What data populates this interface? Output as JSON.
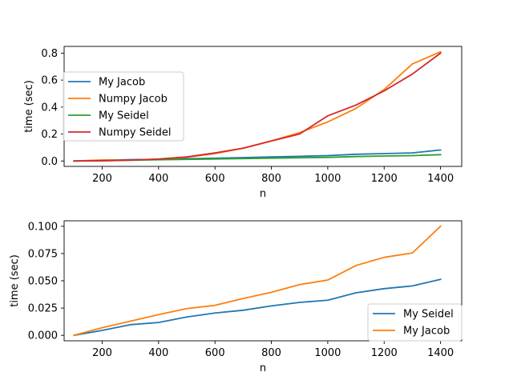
{
  "chart_data": [
    {
      "type": "line",
      "title": "",
      "xlabel": "n",
      "ylabel": "time (sec)",
      "xlim": [
        65,
        1475
      ],
      "ylim": [
        -0.04,
        0.85
      ],
      "xticks": [
        200,
        400,
        600,
        800,
        1000,
        1200,
        1400
      ],
      "yticks": [
        0.0,
        0.2,
        0.4,
        0.6,
        0.8
      ],
      "ytick_labels": [
        "0.0",
        "0.2",
        "0.4",
        "0.6",
        "0.8"
      ],
      "legend_position": "center-left",
      "grid": false,
      "x": [
        100,
        200,
        300,
        400,
        500,
        600,
        700,
        800,
        900,
        1000,
        1100,
        1200,
        1300,
        1400
      ],
      "series": [
        {
          "name": "My Jacob",
          "color": "#1f77b4",
          "values": [
            0.0,
            0.005,
            0.01,
            0.012,
            0.017,
            0.021,
            0.025,
            0.03,
            0.035,
            0.04,
            0.05,
            0.055,
            0.06,
            0.082
          ]
        },
        {
          "name": "Numpy Jacob",
          "color": "#ff7f0e",
          "values": [
            0.0,
            0.008,
            0.006,
            0.013,
            0.028,
            0.055,
            0.095,
            0.15,
            0.21,
            0.29,
            0.39,
            0.53,
            0.72,
            0.81
          ]
        },
        {
          "name": "My Seidel",
          "color": "#2ca02c",
          "values": [
            0.0,
            0.002,
            0.006,
            0.009,
            0.012,
            0.015,
            0.018,
            0.021,
            0.024,
            0.027,
            0.033,
            0.037,
            0.04,
            0.047
          ]
        },
        {
          "name": "Numpy Seidel",
          "color": "#d62728",
          "values": [
            0.0,
            0.002,
            0.006,
            0.015,
            0.03,
            0.06,
            0.095,
            0.148,
            0.2,
            0.335,
            0.415,
            0.52,
            0.645,
            0.8
          ]
        }
      ]
    },
    {
      "type": "line",
      "title": "",
      "xlabel": "n",
      "ylabel": "time (sec)",
      "xlim": [
        65,
        1475
      ],
      "ylim": [
        -0.005,
        0.105
      ],
      "xticks": [
        200,
        400,
        600,
        800,
        1000,
        1200,
        1400
      ],
      "yticks": [
        0.0,
        0.025,
        0.05,
        0.075,
        0.1
      ],
      "ytick_labels": [
        "0.000",
        "0.025",
        "0.050",
        "0.075",
        "0.100"
      ],
      "legend_position": "lower-right",
      "grid": false,
      "x": [
        100,
        200,
        300,
        400,
        500,
        600,
        700,
        800,
        900,
        1000,
        1100,
        1200,
        1300,
        1400
      ],
      "series": [
        {
          "name": "My Seidel",
          "color": "#1f77b4",
          "values": [
            0.0,
            0.0045,
            0.0098,
            0.0118,
            0.0168,
            0.0205,
            0.023,
            0.027,
            0.0302,
            0.0322,
            0.039,
            0.0428,
            0.0453,
            0.0513
          ]
        },
        {
          "name": "My Jacob",
          "color": "#ff7f0e",
          "values": [
            0.0,
            0.007,
            0.013,
            0.019,
            0.0245,
            0.0275,
            0.0338,
            0.0395,
            0.0465,
            0.0507,
            0.064,
            0.0715,
            0.0755,
            0.1
          ]
        }
      ]
    }
  ]
}
